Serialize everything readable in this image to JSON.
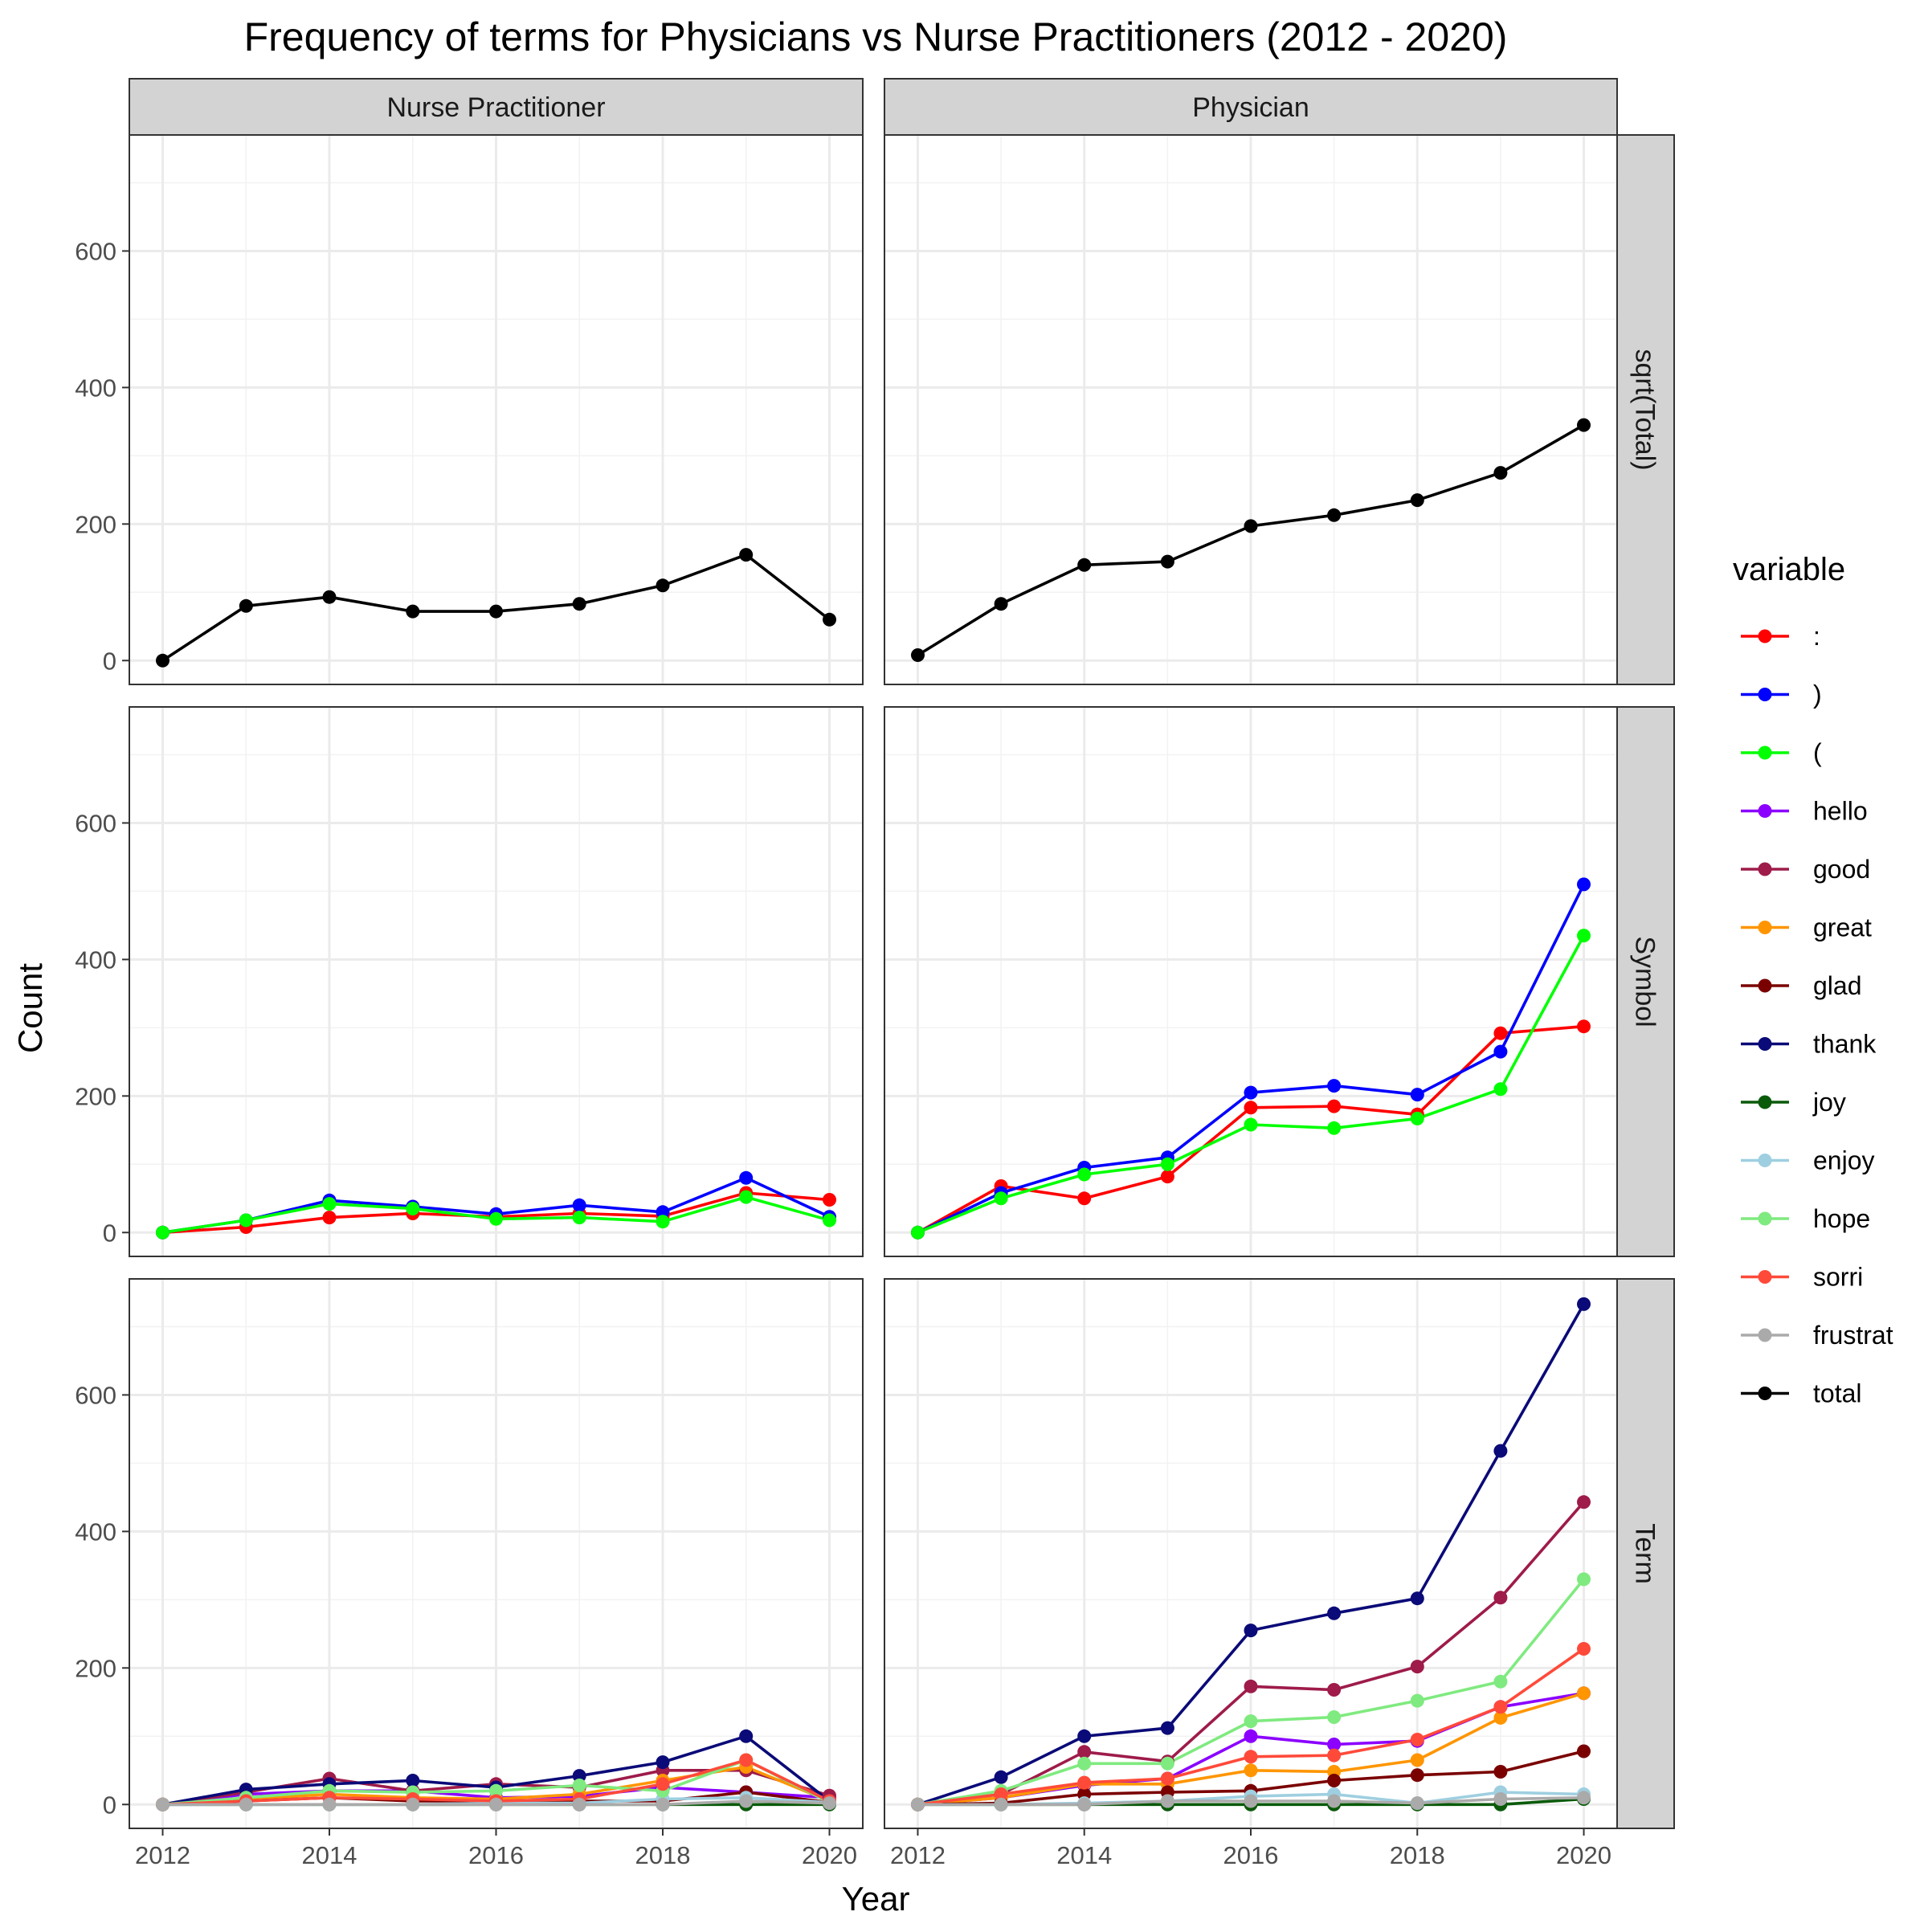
{
  "chart_data": {
    "type": "line",
    "title": "Frequency of terms for Physicians vs Nurse Practitioners (2012 - 2020)",
    "xlabel": "Year",
    "ylabel": "Count",
    "x": [
      2012,
      2013,
      2014,
      2015,
      2016,
      2017,
      2018,
      2019,
      2020
    ],
    "xticks": [
      2012,
      2014,
      2016,
      2018,
      2020
    ],
    "yticks": [
      0,
      200,
      400,
      600
    ],
    "xlim": [
      2011.6,
      2020.4
    ],
    "ylim": [
      -35,
      770
    ],
    "grid": true,
    "legend_position": "right",
    "columns": [
      "Nurse Practitioner",
      "Physician"
    ],
    "rows": [
      "sqrt(Total)",
      "Symbol",
      "Term"
    ],
    "legend": {
      "title": "variable",
      "items": [
        {
          "name": ":",
          "color": "#FF0000"
        },
        {
          "name": ")",
          "color": "#0000FF"
        },
        {
          "name": "(",
          "color": "#00FF00"
        },
        {
          "name": "hello",
          "color": "#8B00FF"
        },
        {
          "name": "good",
          "color": "#9E1B4A"
        },
        {
          "name": "great",
          "color": "#FF9500"
        },
        {
          "name": "glad",
          "color": "#7A0000"
        },
        {
          "name": "thank",
          "color": "#0A0A78"
        },
        {
          "name": "joy",
          "color": "#0A5A0A"
        },
        {
          "name": "enjoy",
          "color": "#9ECFE0"
        },
        {
          "name": "hope",
          "color": "#7FEA7F"
        },
        {
          "name": "sorri",
          "color": "#FF4A3A"
        },
        {
          "name": "frustrat",
          "color": "#AAAAAA"
        },
        {
          "name": "total",
          "color": "#000000"
        }
      ]
    },
    "panels": [
      {
        "column": "Nurse Practitioner",
        "row": "sqrt(Total)",
        "series": [
          {
            "name": "total",
            "values": [
              0,
              80,
              93,
              72,
              72,
              83,
              110,
              155,
              60
            ]
          }
        ]
      },
      {
        "column": "Physician",
        "row": "sqrt(Total)",
        "series": [
          {
            "name": "total",
            "values": [
              8,
              83,
              140,
              145,
              197,
              213,
              235,
              275,
              345
            ]
          }
        ]
      },
      {
        "column": "Nurse Practitioner",
        "row": "Symbol",
        "series": [
          {
            "name": ":",
            "values": [
              0,
              8,
              22,
              28,
              23,
              28,
              24,
              58,
              48
            ]
          },
          {
            "name": ")",
            "values": [
              0,
              18,
              47,
              38,
              27,
              40,
              30,
              80,
              23
            ]
          },
          {
            "name": "(",
            "values": [
              0,
              18,
              42,
              35,
              20,
              22,
              16,
              52,
              18
            ]
          }
        ]
      },
      {
        "column": "Physician",
        "row": "Symbol",
        "series": [
          {
            "name": ":",
            "values": [
              0,
              68,
              50,
              82,
              183,
              185,
              173,
              292,
              302
            ]
          },
          {
            "name": ")",
            "values": [
              0,
              58,
              95,
              110,
              205,
              215,
              202,
              265,
              510
            ]
          },
          {
            "name": "(",
            "values": [
              0,
              50,
              85,
              100,
              158,
              153,
              167,
              210,
              435
            ]
          }
        ]
      },
      {
        "column": "Nurse Practitioner",
        "row": "Term",
        "series": [
          {
            "name": "hello",
            "values": [
              0,
              15,
              20,
              20,
              10,
              12,
              25,
              18,
              10
            ]
          },
          {
            "name": "good",
            "values": [
              0,
              18,
              38,
              20,
              30,
              25,
              50,
              50,
              13
            ]
          },
          {
            "name": "great",
            "values": [
              0,
              8,
              15,
              10,
              8,
              15,
              35,
              55,
              5
            ]
          },
          {
            "name": "glad",
            "values": [
              0,
              5,
              10,
              5,
              5,
              5,
              5,
              18,
              3
            ]
          },
          {
            "name": "thank",
            "values": [
              0,
              22,
              30,
              35,
              25,
              42,
              62,
              100,
              5
            ]
          },
          {
            "name": "joy",
            "values": [
              0,
              0,
              0,
              0,
              0,
              0,
              0,
              0,
              0
            ]
          },
          {
            "name": "enjoy",
            "values": [
              0,
              0,
              0,
              0,
              2,
              2,
              8,
              10,
              3
            ]
          },
          {
            "name": "hope",
            "values": [
              0,
              10,
              20,
              18,
              20,
              28,
              20,
              65,
              3
            ]
          },
          {
            "name": "sorri",
            "values": [
              0,
              5,
              10,
              8,
              5,
              8,
              30,
              65,
              5
            ]
          },
          {
            "name": "frustrat",
            "values": [
              0,
              0,
              0,
              0,
              0,
              0,
              0,
              5,
              2
            ]
          }
        ]
      },
      {
        "column": "Physician",
        "row": "Term",
        "series": [
          {
            "name": "hello",
            "values": [
              0,
              10,
              28,
              38,
              100,
              88,
              93,
              143,
              163
            ]
          },
          {
            "name": "good",
            "values": [
              0,
              15,
              77,
              63,
              173,
              168,
              202,
              303,
              443
            ]
          },
          {
            "name": "great",
            "values": [
              0,
              10,
              30,
              30,
              50,
              48,
              65,
              127,
              163
            ]
          },
          {
            "name": "glad",
            "values": [
              0,
              2,
              15,
              18,
              20,
              35,
              43,
              48,
              78
            ]
          },
          {
            "name": "thank",
            "values": [
              0,
              40,
              100,
              112,
              255,
              280,
              302,
              518,
              733
            ]
          },
          {
            "name": "joy",
            "values": [
              0,
              0,
              0,
              0,
              0,
              0,
              0,
              0,
              8
            ]
          },
          {
            "name": "enjoy",
            "values": [
              0,
              0,
              2,
              5,
              12,
              15,
              2,
              18,
              15
            ]
          },
          {
            "name": "hope",
            "values": [
              0,
              20,
              60,
              60,
              122,
              128,
              152,
              180,
              330
            ]
          },
          {
            "name": "sorri",
            "values": [
              0,
              15,
              32,
              38,
              70,
              72,
              95,
              143,
              228
            ]
          },
          {
            "name": "frustrat",
            "values": [
              0,
              0,
              0,
              5,
              5,
              5,
              2,
              8,
              10
            ]
          }
        ]
      }
    ]
  }
}
